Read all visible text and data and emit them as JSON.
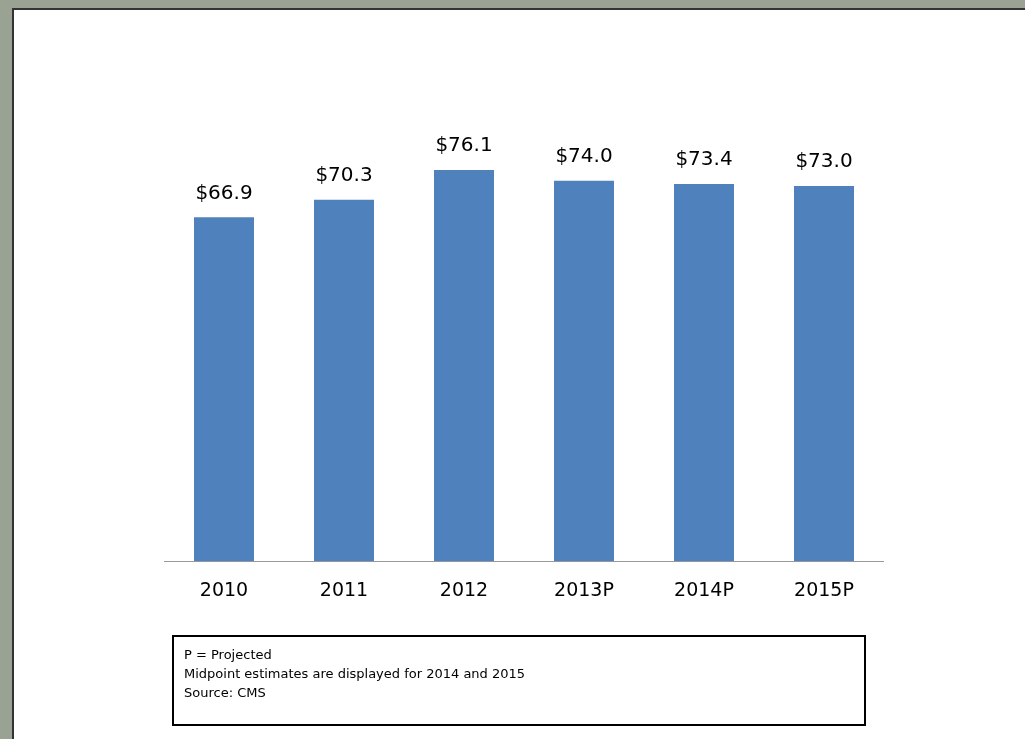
{
  "chart_data": {
    "type": "bar",
    "categories": [
      "2010",
      "2011",
      "2012",
      "2013P",
      "2014P",
      "2015P"
    ],
    "values": [
      66.9,
      70.3,
      76.1,
      74.0,
      73.4,
      73.0
    ],
    "value_labels": [
      "$66.9",
      "$70.3",
      "$76.1",
      "$74.0",
      "$73.4",
      "$73.0"
    ],
    "color": "#4f81bd",
    "grid": false,
    "legend": false,
    "annotations": [
      "P = Projected",
      "Midpoint estimates are displayed for 2014 and 2015",
      "Source:  CMS"
    ]
  }
}
